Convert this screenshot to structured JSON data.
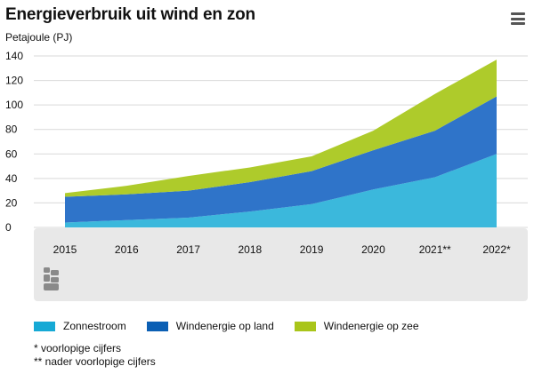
{
  "header": {
    "title": "Energieverbruik uit wind en zon",
    "menu_icon": "hamburger-menu-icon"
  },
  "chart_data": {
    "type": "area",
    "stacked": true,
    "unit_label": "Petajoule (PJ)",
    "categories": [
      "2015",
      "2016",
      "2017",
      "2018",
      "2019",
      "2020",
      "2021**",
      "2022*"
    ],
    "ylim": [
      0,
      140
    ],
    "yticks": [
      0,
      20,
      40,
      60,
      80,
      100,
      120,
      140
    ],
    "grid": true,
    "series": [
      {
        "name": "Zonnestroom",
        "color": "#3bb8dc",
        "values": [
          4,
          6,
          8,
          13,
          19,
          31,
          41,
          60
        ]
      },
      {
        "name": "Windenergie op land",
        "color": "#2f74c9",
        "values": [
          21,
          21,
          22,
          24,
          27,
          32,
          38,
          47
        ]
      },
      {
        "name": "Windenergie op zee",
        "color": "#aecb2b",
        "values": [
          3,
          7,
          12,
          12,
          12,
          16,
          30,
          30
        ]
      }
    ],
    "legend_position": "bottom",
    "source_logo": "cbs-logo-icon"
  },
  "legend": {
    "items": [
      {
        "label": "Zonnestroom",
        "color": "#16a9d5"
      },
      {
        "label": "Windenergie op land",
        "color": "#0b5fb4"
      },
      {
        "label": "Windenergie op zee",
        "color": "#a9c51a"
      }
    ]
  },
  "notes": {
    "line1": "* voorlopige cijfers",
    "line2": "** nader voorlopige cijfers"
  }
}
